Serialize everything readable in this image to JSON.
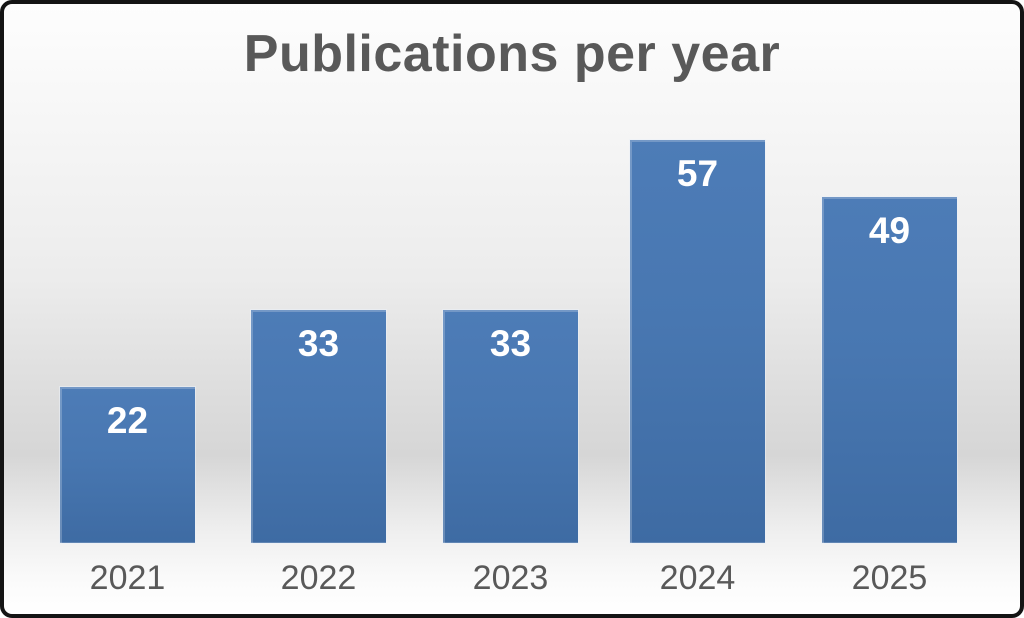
{
  "title": "Publications per year",
  "chart_data": {
    "type": "bar",
    "title": "Publications per year",
    "categories": [
      "2021",
      "2022",
      "2023",
      "2024",
      "2025"
    ],
    "values": [
      22,
      33,
      33,
      57,
      49
    ],
    "xlabel": "",
    "ylabel": "",
    "ylim": [
      0,
      60
    ],
    "grid": false,
    "legend": "none",
    "value_label_position": "inside-top",
    "colors": {
      "bar_top": "#4d7cb7",
      "bar_bottom": "#3e6ba3",
      "value_label": "#ffffff",
      "category_label": "#595959",
      "title": "#595959",
      "frame_border": "#141414"
    }
  }
}
